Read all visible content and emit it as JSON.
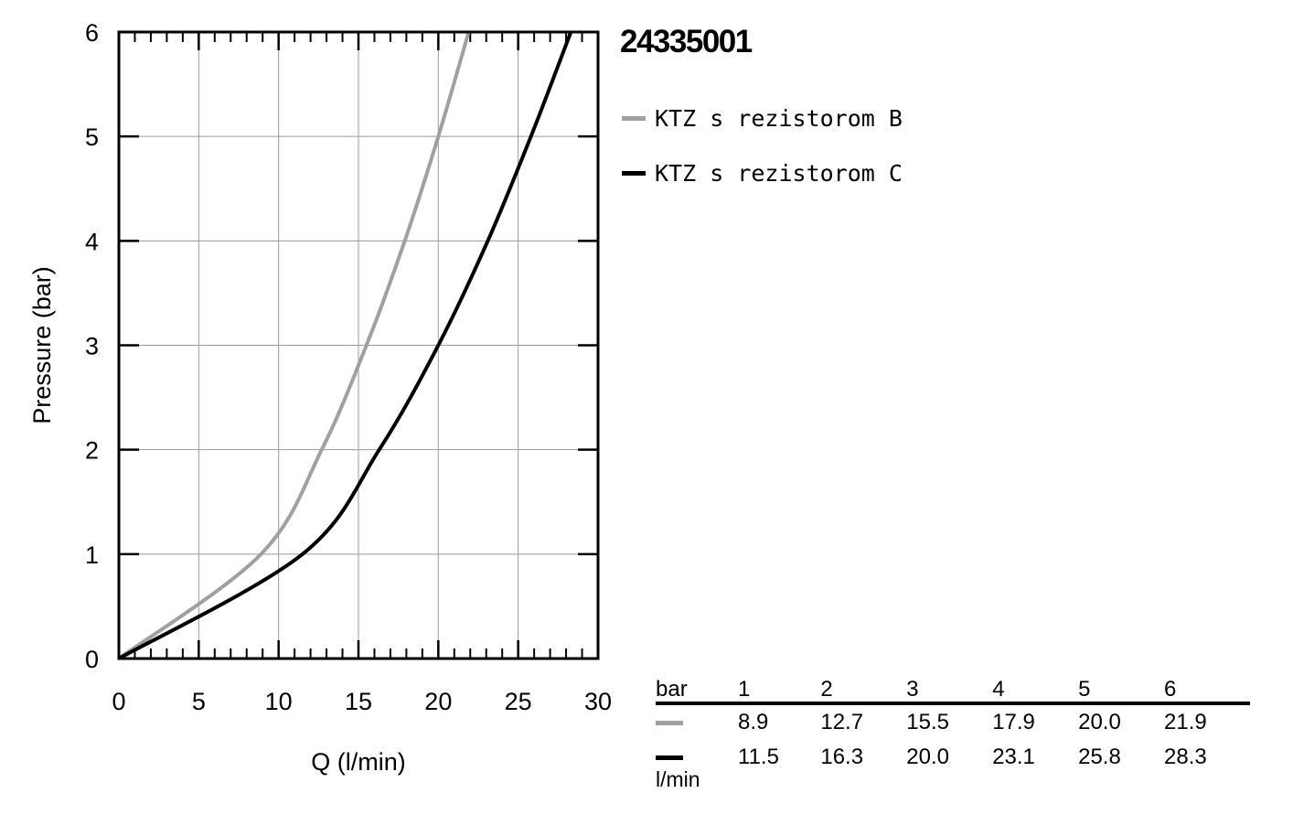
{
  "title": "24335001",
  "legend": [
    {
      "label": "KTZ s rezistorom B",
      "color": "#a0a0a0"
    },
    {
      "label": "KTZ s rezistorom C",
      "color": "#000000"
    }
  ],
  "chart_data": {
    "type": "line",
    "xlabel": "Q (l/min)",
    "ylabel": "Pressure (bar)",
    "xlim": [
      0,
      30
    ],
    "ylim": [
      0,
      6
    ],
    "xticks": [
      0,
      5,
      10,
      15,
      20,
      25,
      30
    ],
    "yticks": [
      0,
      1,
      2,
      3,
      4,
      5,
      6
    ],
    "grid": true,
    "series": [
      {
        "name": "KTZ s rezistorom B",
        "color": "#a0a0a0",
        "x": [
          0,
          8.9,
          12.7,
          15.5,
          17.9,
          20.0,
          21.9
        ],
        "y": [
          0,
          1,
          2,
          3,
          4,
          5,
          6
        ]
      },
      {
        "name": "KTZ s rezistorom C",
        "color": "#000000",
        "x": [
          0,
          11.5,
          16.3,
          20.0,
          23.1,
          25.8,
          28.3
        ],
        "y": [
          0,
          1,
          2,
          3,
          4,
          5,
          6
        ]
      }
    ]
  },
  "table": {
    "header": [
      "bar",
      "1",
      "2",
      "3",
      "4",
      "5",
      "6"
    ],
    "rows": [
      {
        "color": "#a0a0a0",
        "values": [
          "8.9",
          "12.7",
          "15.5",
          "17.9",
          "20.0",
          "21.9"
        ]
      },
      {
        "color": "#000000",
        "values": [
          "11.5",
          "16.3",
          "20.0",
          "23.1",
          "25.8",
          "28.3"
        ]
      }
    ],
    "unit": "l/min"
  }
}
